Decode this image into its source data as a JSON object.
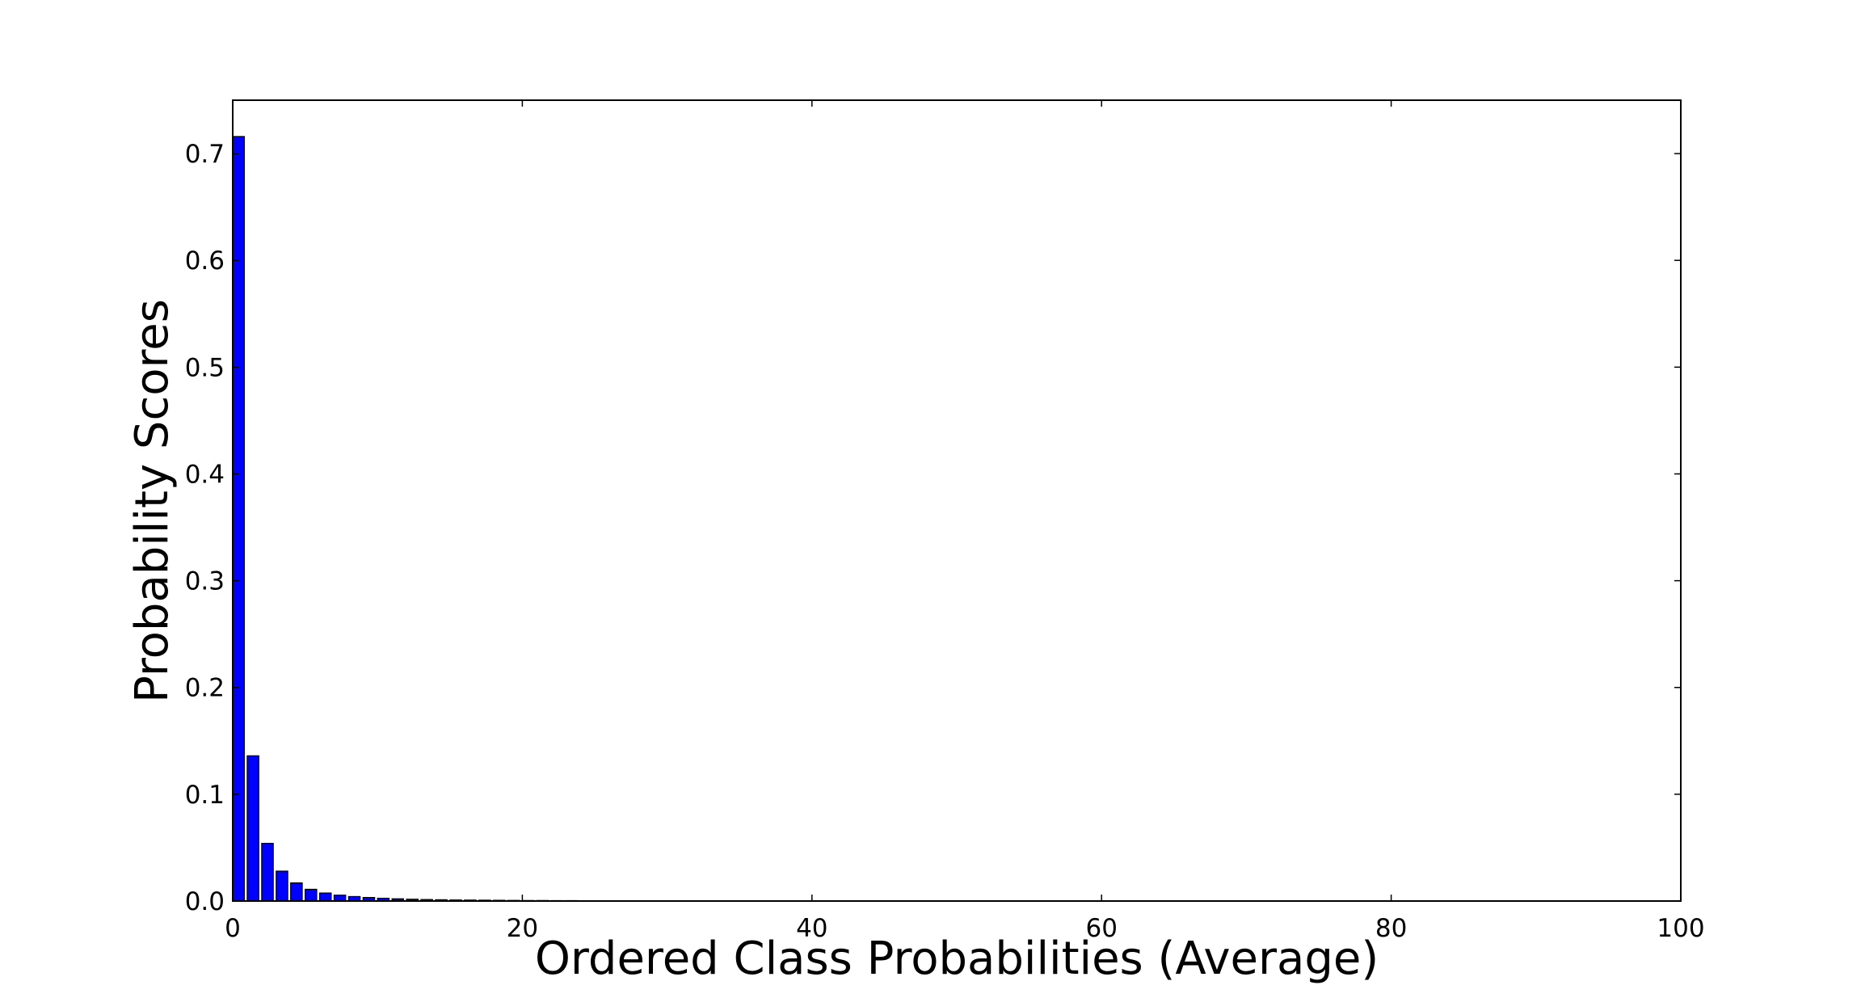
{
  "chart_data": {
    "type": "bar",
    "title": "",
    "xlabel": "Ordered Class Probabilities (Average)",
    "ylabel": "Probability Scores",
    "xlim": [
      0,
      100
    ],
    "ylim": [
      0,
      0.75
    ],
    "xticks": [
      "0",
      "20",
      "40",
      "60",
      "80",
      "100"
    ],
    "yticks": [
      "0.0",
      "0.1",
      "0.2",
      "0.3",
      "0.4",
      "0.5",
      "0.6",
      "0.7"
    ],
    "grid": false,
    "legend": "none",
    "bar_color": "#0000ff",
    "x": [
      0,
      1,
      2,
      3,
      4,
      5,
      6,
      7,
      8,
      9,
      10,
      11,
      12,
      13,
      14,
      15,
      16,
      17,
      18,
      19,
      20,
      21,
      22,
      23,
      24,
      25,
      26,
      27,
      28,
      29,
      30,
      31,
      32,
      33,
      34,
      35,
      36,
      37,
      38,
      39,
      40,
      41,
      42,
      43,
      44,
      45,
      46,
      47,
      48,
      49,
      50,
      51,
      52,
      53,
      54,
      55,
      56,
      57,
      58,
      59,
      60,
      61,
      62,
      63,
      64,
      65,
      66,
      67,
      68,
      69,
      70,
      71,
      72,
      73,
      74,
      75,
      76,
      77,
      78,
      79,
      80,
      81,
      82,
      83,
      84,
      85,
      86,
      87,
      88,
      89,
      90,
      91,
      92,
      93,
      94,
      95,
      96,
      97,
      98,
      99
    ],
    "values": [
      0.716,
      0.136,
      0.054,
      0.028,
      0.017,
      0.011,
      0.0075,
      0.0055,
      0.0042,
      0.0033,
      0.0026,
      0.0021,
      0.0017,
      0.0014,
      0.0012,
      0.001,
      0.0009,
      0.0008,
      0.0007,
      0.0006,
      0.0005,
      0.0005,
      0.0004,
      0.0004,
      0.0003,
      0.0003,
      0.0003,
      0.0002,
      0.0002,
      0.0002,
      0.0002,
      0.0002,
      0.0001,
      0.0001,
      0.0001,
      0.0001,
      0.0001,
      0.0001,
      0.0001,
      0.0001,
      0.0001,
      0.0001,
      0.0001,
      0.0001,
      0.0001,
      0.0001,
      0.0001,
      0.0001,
      0.0001,
      0.0001,
      0.0001,
      0.0001,
      0.0001,
      0.0001,
      0.0001,
      0.0001,
      0.0001,
      0.0001,
      0.0001,
      0.0001,
      0.0001,
      0.0001,
      0.0001,
      0.0001,
      0.0001,
      0.0001,
      0.0001,
      0.0001,
      0.0001,
      0.0001,
      0.0001,
      0.0001,
      0.0001,
      0.0001,
      0.0001,
      0.0001,
      0.0001,
      0.0001,
      0.0001,
      0.0001,
      0.0001,
      0.0001,
      0.0001,
      0.0001,
      0.0001,
      0.0001,
      0.0001,
      0.0001,
      0.0001,
      0.0001,
      0.0001,
      0.0001,
      0.0001,
      0.0001,
      0.0001,
      0.0001,
      0.0001,
      0.0001,
      0.0001,
      0.0001
    ]
  }
}
